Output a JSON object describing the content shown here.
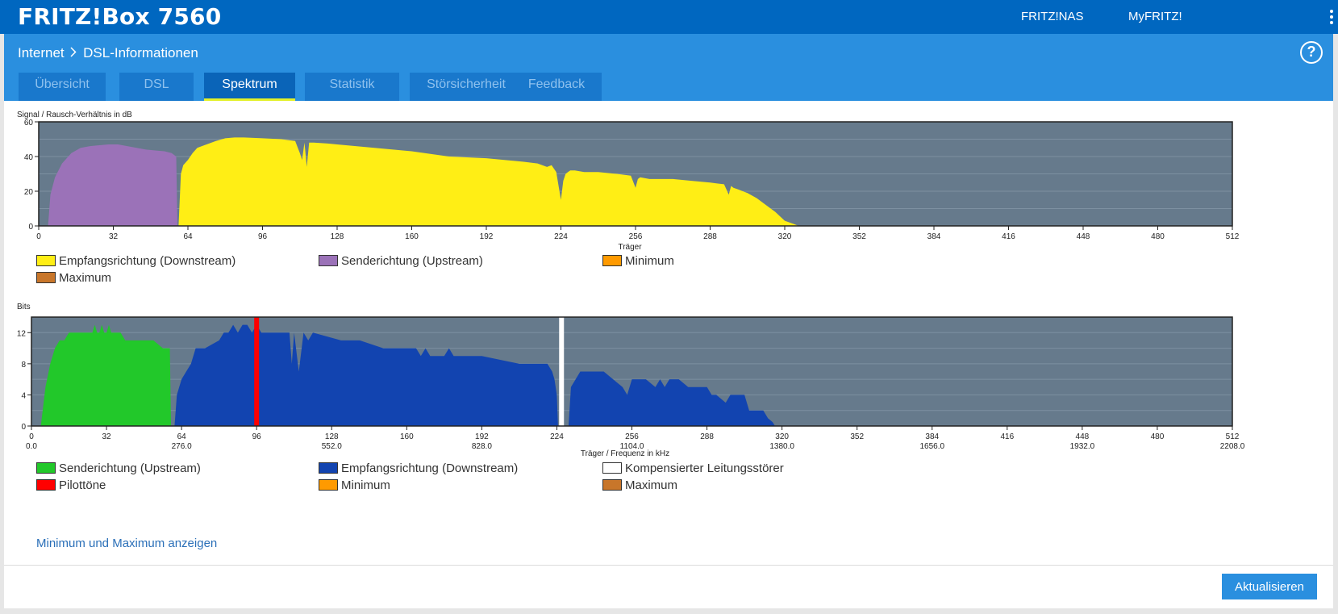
{
  "header": {
    "brand": "FRITZ!Box 7560",
    "links": [
      "FRITZ!NAS",
      "MyFRITZ!"
    ]
  },
  "breadcrumb": {
    "parent": "Internet",
    "separator": ">",
    "current": "DSL-Informationen"
  },
  "help_label": "?",
  "tabs": [
    "Übersicht",
    "DSL",
    "Spektrum",
    "Statistik",
    "Störsicherheit",
    "Feedback"
  ],
  "active_tab": "Spektrum",
  "colors": {
    "plot_bg": "#667a8c",
    "downstream_snr": "#ffee15",
    "upstream_snr": "#9b72b8",
    "upstream_bits": "#22c82a",
    "downstream_bits": "#1244b0",
    "pilot": "#ff0000",
    "kompensiert": "#ffffff",
    "minimum": "#ff9a00",
    "maximum": "#c8762a",
    "accent": "#2a8fdf"
  },
  "chart_data": [
    {
      "type": "area",
      "title": "Signal / Rausch-Verhältnis in dB",
      "xlabel": "Träger",
      "ylabel": "",
      "xlim": [
        0,
        512
      ],
      "ylim": [
        0,
        60
      ],
      "xticks": [
        0,
        32,
        64,
        96,
        128,
        160,
        192,
        224,
        256,
        288,
        320,
        352,
        384,
        416,
        448,
        480,
        512
      ],
      "yticks": [
        0,
        20,
        40,
        60
      ],
      "series": [
        {
          "name": "Sendrichtung (Upstream)",
          "color": "#9b72b8",
          "x": [
            4,
            5,
            7,
            10,
            14,
            18,
            22,
            26,
            30,
            34,
            38,
            42,
            46,
            50,
            54,
            57,
            59,
            59.5
          ],
          "y": [
            0,
            18,
            28,
            36,
            42,
            45,
            46,
            46.5,
            47,
            47,
            46,
            45,
            44,
            43.5,
            43,
            42,
            40,
            0
          ]
        },
        {
          "name": "Empfangsrichtung (Downstream)",
          "color": "#ffee15",
          "x": [
            60,
            61,
            62,
            64,
            66,
            68,
            72,
            76,
            80,
            84,
            88,
            96,
            104,
            110,
            112,
            113,
            114,
            115,
            116,
            117,
            118,
            124,
            128,
            136,
            144,
            160,
            176,
            192,
            208,
            214,
            218,
            220,
            222,
            224,
            225,
            226,
            227,
            228,
            230,
            234,
            240,
            248,
            254,
            256,
            257,
            258,
            262,
            272,
            280,
            288,
            294,
            296,
            297,
            298,
            300,
            304,
            308,
            312,
            316,
            320,
            324,
            326
          ],
          "y": [
            0,
            30,
            35,
            38,
            42,
            45,
            47,
            49,
            50.5,
            51,
            51,
            50.5,
            50,
            49,
            42,
            38,
            48,
            34,
            48,
            48,
            48,
            47.5,
            47,
            46,
            45,
            43,
            40,
            39,
            37,
            36,
            34,
            35,
            31,
            15,
            26,
            30,
            31,
            32,
            32,
            31,
            31,
            30,
            29,
            22,
            27,
            28,
            27,
            27,
            26,
            25,
            24,
            18,
            23,
            22,
            21,
            19,
            16,
            12,
            8,
            3,
            1,
            0
          ]
        }
      ],
      "legend": [
        "Empfangsrichtung (Downstream)",
        "Senderichtung (Upstream)",
        "Minimum",
        "Maximum"
      ]
    },
    {
      "type": "area",
      "title": "Bits",
      "xlabel": "Träger / Frequenz in kHz",
      "ylabel": "",
      "xlim": [
        0,
        512
      ],
      "ylim": [
        0,
        14
      ],
      "xticks": [
        0,
        32,
        64,
        96,
        128,
        160,
        192,
        224,
        256,
        288,
        320,
        352,
        384,
        416,
        448,
        480,
        512
      ],
      "freq_ticks": [
        "0.0",
        "276.0",
        "552.0",
        "828.0",
        "1104.0",
        "1380.0",
        "1656.0",
        "1932.0",
        "2208.0"
      ],
      "yticks": [
        0,
        4,
        8,
        12
      ],
      "series": [
        {
          "name": "Senderichtung (Upstream)",
          "color": "#22c82a",
          "x": [
            4,
            6,
            8,
            10,
            12,
            14,
            16,
            20,
            24,
            26,
            27,
            28,
            29,
            30,
            31,
            32,
            33,
            34,
            36,
            38,
            40,
            42,
            44,
            48,
            52,
            56,
            58,
            59,
            59.5
          ],
          "y": [
            0,
            5,
            8,
            10,
            11,
            11,
            12,
            12,
            12,
            12,
            13,
            12,
            12,
            13,
            12,
            12,
            13,
            12,
            12,
            12,
            11,
            11,
            11,
            11,
            11,
            10,
            10,
            10,
            0
          ]
        },
        {
          "name": "Empfangsrichtung (Downstream)",
          "color": "#1244b0",
          "x": [
            61,
            62,
            64,
            66,
            68,
            70,
            74,
            80,
            82,
            84,
            86,
            88,
            90,
            92,
            94,
            96,
            98,
            108,
            110,
            111,
            112,
            114,
            116,
            118,
            120,
            132,
            140,
            150,
            164,
            166,
            168,
            170,
            176,
            178,
            180,
            182,
            192,
            208,
            220,
            222,
            223,
            224,
            224.5
          ],
          "y": [
            0,
            4,
            6,
            7,
            8,
            10,
            10,
            11,
            12,
            12,
            13,
            12,
            13,
            13,
            12,
            13,
            12,
            12,
            12,
            8,
            12,
            7,
            12,
            11,
            12,
            11,
            11,
            10,
            10,
            9,
            10,
            9,
            9,
            10,
            9,
            9,
            9,
            8,
            8,
            7,
            6,
            4,
            0
          ]
        },
        {
          "name": "Empfangsrichtung (Downstream)",
          "color": "#1244b0",
          "x": [
            229,
            230,
            232,
            234,
            244,
            248,
            252,
            254,
            256,
            262,
            266,
            268,
            270,
            272,
            276,
            280,
            284,
            288,
            290,
            292,
            296,
            298,
            300,
            304,
            306,
            308,
            310,
            312,
            314,
            316,
            317
          ],
          "y": [
            0,
            5,
            6,
            7,
            7,
            6,
            5,
            4,
            6,
            6,
            5,
            6,
            5,
            6,
            6,
            5,
            5,
            5,
            4,
            4,
            3,
            4,
            4,
            4,
            2,
            2,
            2,
            2,
            1,
            0.5,
            0
          ]
        },
        {
          "name": "Pilottöne",
          "color": "#ff0000",
          "x": [
            96
          ],
          "y": [
            14
          ]
        },
        {
          "name": "Kompensierter Leitungsstörer",
          "color": "#ffffff",
          "x": [
            226
          ],
          "y": [
            14
          ]
        }
      ],
      "legend": [
        "Senderichtung (Upstream)",
        "Empfangsrichtung (Downstream)",
        "Kompensierter Leitungsstörer",
        "Pilottöne",
        "Minimum",
        "Maximum"
      ]
    }
  ],
  "show_minmax_link": "Minimum und Maximum anzeigen",
  "refresh_button": "Aktualisieren"
}
